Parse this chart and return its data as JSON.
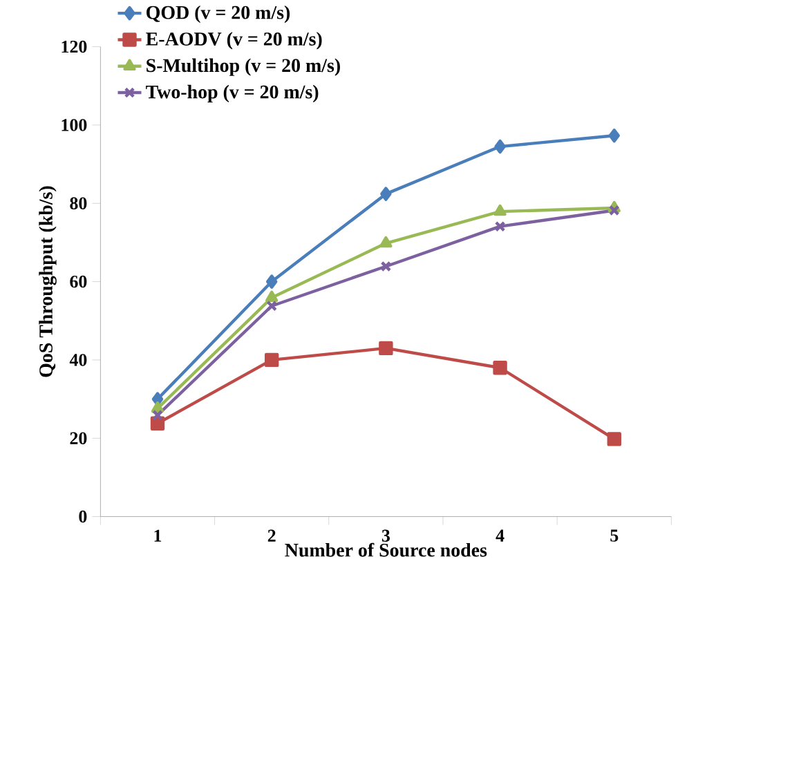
{
  "chart_data": {
    "type": "line",
    "xlabel": "Number of Source nodes",
    "ylabel": "QoS  Throughput (kb/s)",
    "categories": [
      "1",
      "2",
      "3",
      "4",
      "5"
    ],
    "series": [
      {
        "name": "QOD (v = 20 m/s)",
        "color": "#4a7ebb",
        "marker": "diamond",
        "values": [
          30,
          60,
          82.4,
          94.5,
          97.3
        ]
      },
      {
        "name": "E-AODV (v = 20 m/s)",
        "color": "#be4b48",
        "marker": "square",
        "values": [
          23.8,
          40,
          43,
          38,
          19.8
        ]
      },
      {
        "name": "S-Multihop (v = 20 m/s)",
        "color": "#98b954",
        "marker": "triangle",
        "values": [
          27.6,
          55.9,
          69.8,
          77.9,
          78.8
        ]
      },
      {
        "name": "Two-hop (v = 20 m/s)",
        "color": "#7d60a0",
        "marker": "cross",
        "values": [
          25.9,
          53.8,
          63.9,
          74.1,
          78.2
        ]
      }
    ],
    "ylim": [
      0,
      120
    ],
    "yticks": [
      0,
      20,
      40,
      60,
      80,
      100,
      120
    ],
    "grid": false,
    "legend": "top left",
    "line_style": "solid"
  }
}
